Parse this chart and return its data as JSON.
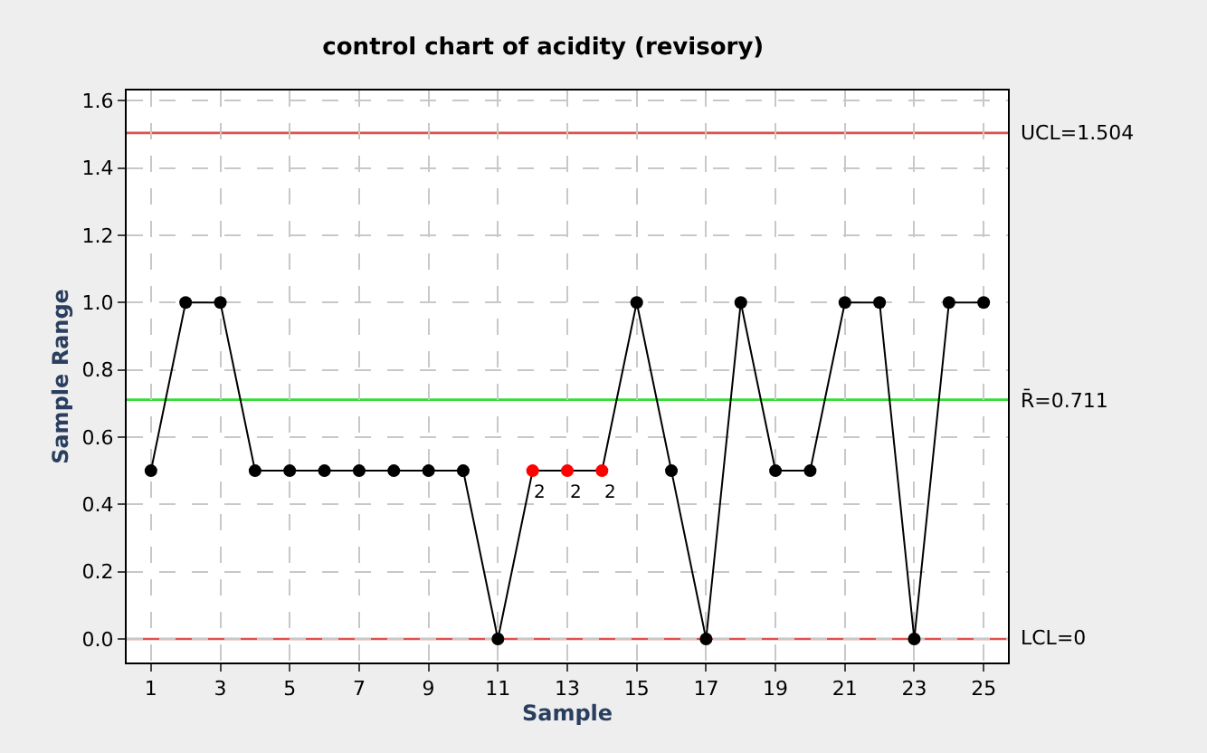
{
  "chart_data": {
    "type": "line",
    "title": "control chart of acidity (revisory)",
    "xlabel": "Sample",
    "ylabel": "Sample Range",
    "x": [
      1,
      2,
      3,
      4,
      5,
      6,
      7,
      8,
      9,
      10,
      11,
      12,
      13,
      14,
      15,
      16,
      17,
      18,
      19,
      20,
      21,
      22,
      23,
      24,
      25
    ],
    "series": [
      {
        "color": "#000000",
        "values": [
          0.5,
          1,
          1,
          0.5,
          0.5,
          0.5,
          0.5,
          0.5,
          0.5,
          0.5,
          0,
          0.5,
          0.5,
          0.5,
          1,
          0.5,
          0,
          1,
          0.5,
          0.5,
          1,
          1,
          0,
          1,
          1
        ],
        "colors": [
          "#000000",
          "#000000",
          "#000000",
          "#000000",
          "#000000",
          "#000000",
          "#000000",
          "#000000",
          "#000000",
          "#000000",
          "#000000",
          "#ff0000",
          "#ff0000",
          "#ff0000",
          "#000000",
          "#000000",
          "#000000",
          "#000000",
          "#000000",
          "#000000",
          "#000000",
          "#000000",
          "#000000",
          "#000000",
          "#000000"
        ]
      }
    ],
    "marker": "circle",
    "line_style": "solid",
    "xlim": [
      0.3,
      25.7
    ],
    "xticks": [
      1,
      3,
      5,
      7,
      9,
      11,
      13,
      15,
      17,
      19,
      21,
      23,
      25
    ],
    "ylim": [
      -0.07,
      1.63
    ],
    "yticks": [
      {
        "value": 0,
        "label": "0.0"
      },
      {
        "value": 0.2,
        "label": "0.2"
      },
      {
        "value": 0.4,
        "label": "0.4"
      },
      {
        "value": 0.6,
        "label": "0.6"
      },
      {
        "value": 0.8,
        "label": "0.8"
      },
      {
        "value": 1.0,
        "label": "1.0"
      },
      {
        "value": 1.2,
        "label": "1.2"
      },
      {
        "value": 1.4,
        "label": "1.4"
      },
      {
        "value": 1.6,
        "label": "1.6"
      }
    ],
    "grid": true,
    "ref_lines": [
      {
        "axis": "y",
        "value": 1.504,
        "label": "UCL=1.504",
        "color": "#e05050"
      },
      {
        "axis": "y",
        "value": 0.711,
        "label": "R̄=0.711",
        "color": "#33dd33"
      },
      {
        "axis": "y",
        "value": 0,
        "label": "LCL=0",
        "color": "#e05050"
      }
    ],
    "annotations": [
      {
        "text": "2",
        "x": 12,
        "y": 0.5
      },
      {
        "text": "2",
        "x": 13,
        "y": 0.5
      },
      {
        "text": "2",
        "x": 14,
        "y": 0.5
      }
    ]
  }
}
